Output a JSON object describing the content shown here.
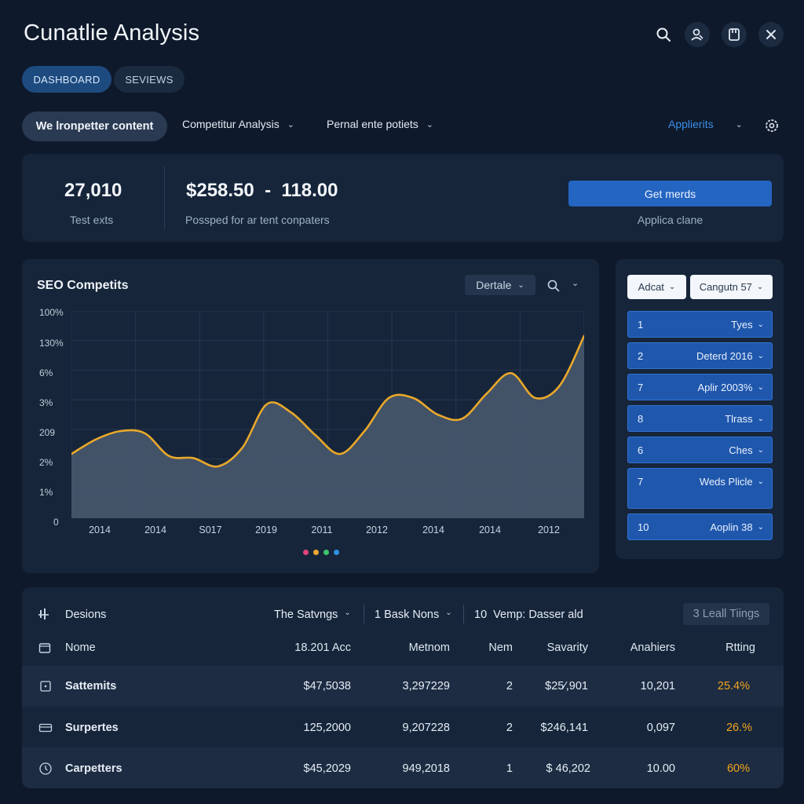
{
  "header": {
    "title": "Cunatlie Analysis"
  },
  "tabs": [
    {
      "label": "DASHBOARD"
    },
    {
      "label": "SEVIEWS"
    }
  ],
  "filters": {
    "pill": "We lronpetter content",
    "dropdown1": "Competitur Analysis",
    "dropdown2": "Pernal ente potiets",
    "right_dropdown": "Applierits"
  },
  "summary": {
    "kpi1_value": "27,010",
    "kpi1_label": "Test exts",
    "kpi2_value": "$258.50  -  118.00",
    "kpi2_label": "Possped for ar tent conpaters",
    "button_label": "Get merds",
    "button_sublabel": "Applica clane"
  },
  "chart_panel": {
    "title": "SEO Competits",
    "select_label": "Dertale"
  },
  "chart_data": {
    "type": "area",
    "title": "SEO Competits",
    "y_tick_labels": [
      "100%",
      "130%",
      "6%",
      "3%",
      "209",
      "2%",
      "1%",
      "0"
    ],
    "x_tick_labels": [
      "2014",
      "2014",
      "S017",
      "2019",
      "2011",
      "2012",
      "2014",
      "2014",
      "2012"
    ],
    "ylim": [
      0,
      100
    ],
    "series": [
      {
        "name": "Competitor",
        "color": "#e9a82a",
        "values": [
          31,
          38,
          42,
          41,
          30,
          29,
          25,
          34,
          55,
          51,
          40,
          31,
          42,
          58,
          58,
          50,
          48,
          60,
          70,
          58,
          64,
          88
        ]
      }
    ],
    "legend_colors": [
      "#e0447a",
      "#f0a830",
      "#3fc46a",
      "#2f8fe0"
    ]
  },
  "side_panel": {
    "select1": "Adcat",
    "select2": "Cangutn 57",
    "rows": [
      {
        "num": "1",
        "label": "Tyes"
      },
      {
        "num": "2",
        "label": "Deterd 2016"
      },
      {
        "num": "7",
        "label": "Aplir 2003%"
      },
      {
        "num": "8",
        "label": "Tlrass"
      },
      {
        "num": "6",
        "label": "Ches"
      },
      {
        "num": "7",
        "label": "Weds Plicle"
      },
      {
        "num": "10",
        "label": "Aoplin 38"
      }
    ]
  },
  "table": {
    "toolbar": {
      "section_label": "Desions",
      "filter1": "The Satvngs",
      "filter2": "1 Bask Nons",
      "filter3": "10  Vemp: Dasser ald",
      "tag_button": "3 Leall Tiings"
    },
    "columns": [
      "Nome",
      "18.201 Acc",
      "Metnom",
      "Nem",
      "Savarity",
      "Anahiers",
      "Rtting"
    ],
    "rows": [
      {
        "name": "Sattemits",
        "c1": "$47,5038",
        "c2": "3,297229",
        "c3": "2",
        "c4": "$25⁄,901",
        "c5": "10,201",
        "c6": "25.4%"
      },
      {
        "name": "Surpertes",
        "c1": "125,2000",
        "c2": "9,207228",
        "c3": "2",
        "c4": "$246,141",
        "c5": "0,097",
        "c6": "26.%"
      },
      {
        "name": "Carpetters",
        "c1": "$45,2029",
        "c2": "949,2018",
        "c3": "1",
        "c4": "$ 46,202",
        "c5": "10.00",
        "c6": "60%"
      }
    ]
  }
}
